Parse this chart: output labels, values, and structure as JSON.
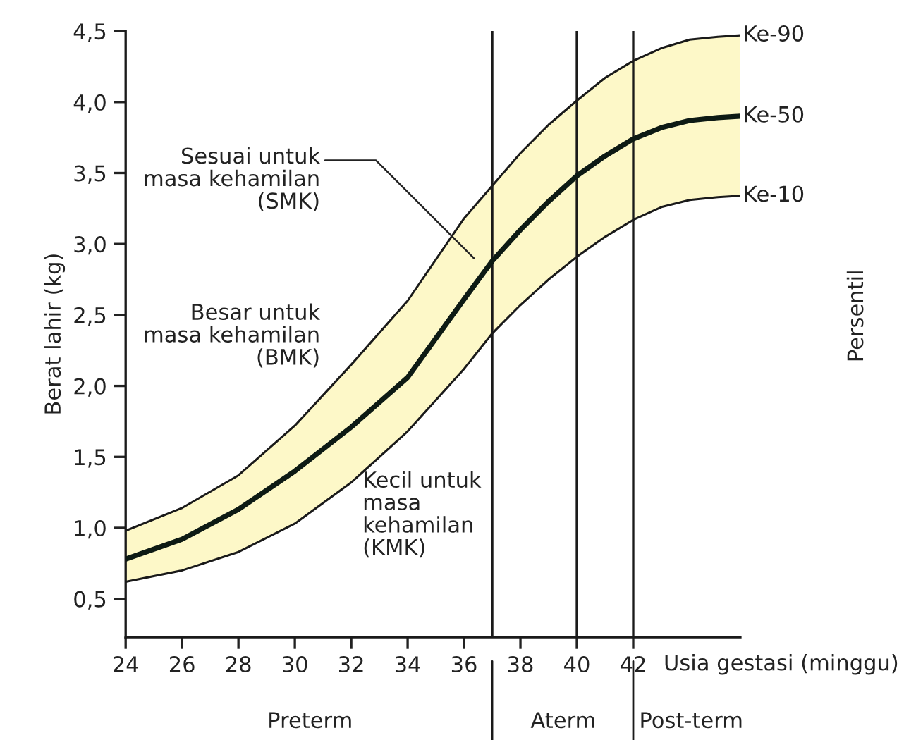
{
  "chart_data": {
    "type": "line",
    "xlabel": "Usia gestasi (minggu)",
    "ylabel": "Berat lahir (kg)",
    "xlim": [
      24,
      45.8
    ],
    "ylim": [
      0.23,
      4.5
    ],
    "xticks": [
      24,
      26,
      28,
      30,
      32,
      34,
      36,
      38,
      40,
      42
    ],
    "yticks": [
      {
        "value": 0.5,
        "label": "0,5"
      },
      {
        "value": 1.0,
        "label": "1,0"
      },
      {
        "value": 1.5,
        "label": "1,5"
      },
      {
        "value": 2.0,
        "label": "2,0"
      },
      {
        "value": 2.5,
        "label": "2,5"
      },
      {
        "value": 3.0,
        "label": "3,0"
      },
      {
        "value": 3.5,
        "label": "3,5"
      },
      {
        "value": 4.0,
        "label": "4,0"
      },
      {
        "value": 4.5,
        "label": "4,5"
      }
    ],
    "x": [
      24,
      26,
      28,
      30,
      32,
      34,
      36,
      37,
      38,
      39,
      40,
      41,
      42,
      43,
      44,
      45,
      45.8
    ],
    "series": [
      {
        "name": "Ke-90",
        "color": "#1a1a1a",
        "values": [
          0.98,
          1.14,
          1.37,
          1.72,
          2.15,
          2.6,
          3.18,
          3.41,
          3.64,
          3.84,
          4.01,
          4.17,
          4.29,
          4.38,
          4.44,
          4.46,
          4.47
        ]
      },
      {
        "name": "Ke-50",
        "color": "#0d1a14",
        "values": [
          0.78,
          0.92,
          1.13,
          1.4,
          1.71,
          2.06,
          2.61,
          2.88,
          3.1,
          3.3,
          3.48,
          3.62,
          3.74,
          3.82,
          3.87,
          3.89,
          3.9
        ],
        "lower": [
          0.62,
          0.7,
          0.83,
          1.03,
          1.32,
          1.68,
          2.12,
          2.37,
          2.57,
          2.75,
          2.91,
          3.05,
          3.17,
          3.26,
          3.31,
          3.33,
          3.34
        ],
        "upper": [
          0.98,
          1.14,
          1.37,
          1.72,
          2.15,
          2.6,
          3.18,
          3.41,
          3.64,
          3.84,
          4.01,
          4.17,
          4.29,
          4.38,
          4.44,
          4.46,
          4.47
        ]
      },
      {
        "name": "Ke-10",
        "color": "#1a1a1a",
        "values": [
          0.62,
          0.7,
          0.83,
          1.03,
          1.32,
          1.68,
          2.12,
          2.37,
          2.57,
          2.75,
          2.91,
          3.05,
          3.17,
          3.26,
          3.31,
          3.33,
          3.34
        ]
      }
    ],
    "ref_lines": [
      {
        "axis": "x",
        "value": 37,
        "color": "#1a1a1a"
      },
      {
        "axis": "x",
        "value": 40,
        "color": "#1a1a1a"
      },
      {
        "axis": "x",
        "value": 42,
        "color": "#1a1a1a"
      }
    ],
    "annotations": [
      "Sesuai untuk\nmasa kehamilan\n(SMK)",
      "Besar untuk\nmasa kehamilan\n(BMK)",
      "Kecil untuk\nmasa\nkehamilan\n(KMK)",
      "Persentil",
      "Preterm",
      "Aterm",
      "Post-term"
    ],
    "grid": false,
    "legend": false,
    "line_style": "solid",
    "marker": "none"
  }
}
